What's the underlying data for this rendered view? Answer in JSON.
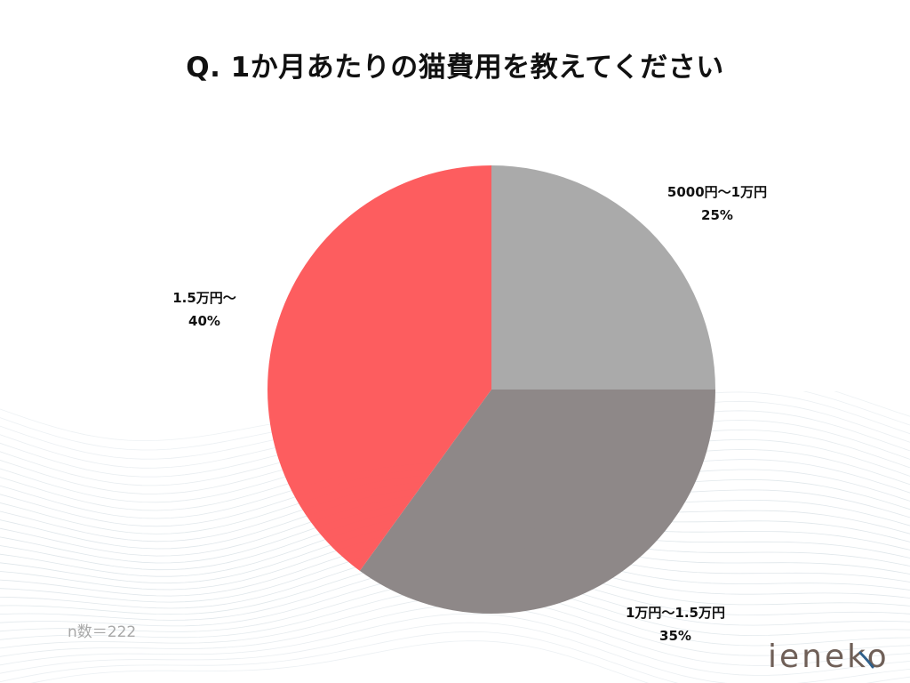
{
  "colors": {
    "slice_gray": "#a7a7a7",
    "slice_dark": "#8a8484",
    "slice_red": "#fd585a",
    "wave": "#dfe6ea",
    "brand": "#6f5f57",
    "brand_accent": "#2f5f8a"
  },
  "chart_data": {
    "type": "pie",
    "title": "Q. 1か月あたりの猫費用を教えてください",
    "slices": [
      {
        "label": "5000円〜1万円",
        "value": 25,
        "value_label": "25%",
        "color": "#a7a7a7"
      },
      {
        "label": "1万円〜1.5万円",
        "value": 35,
        "value_label": "35%",
        "color": "#8a8484"
      },
      {
        "label": "1.5万円〜",
        "value": 40,
        "value_label": "40%",
        "color": "#fd585a"
      }
    ],
    "start_angle": "12 o'clock",
    "direction": "clockwise"
  },
  "note": "n数＝222",
  "brand": "ieneko"
}
